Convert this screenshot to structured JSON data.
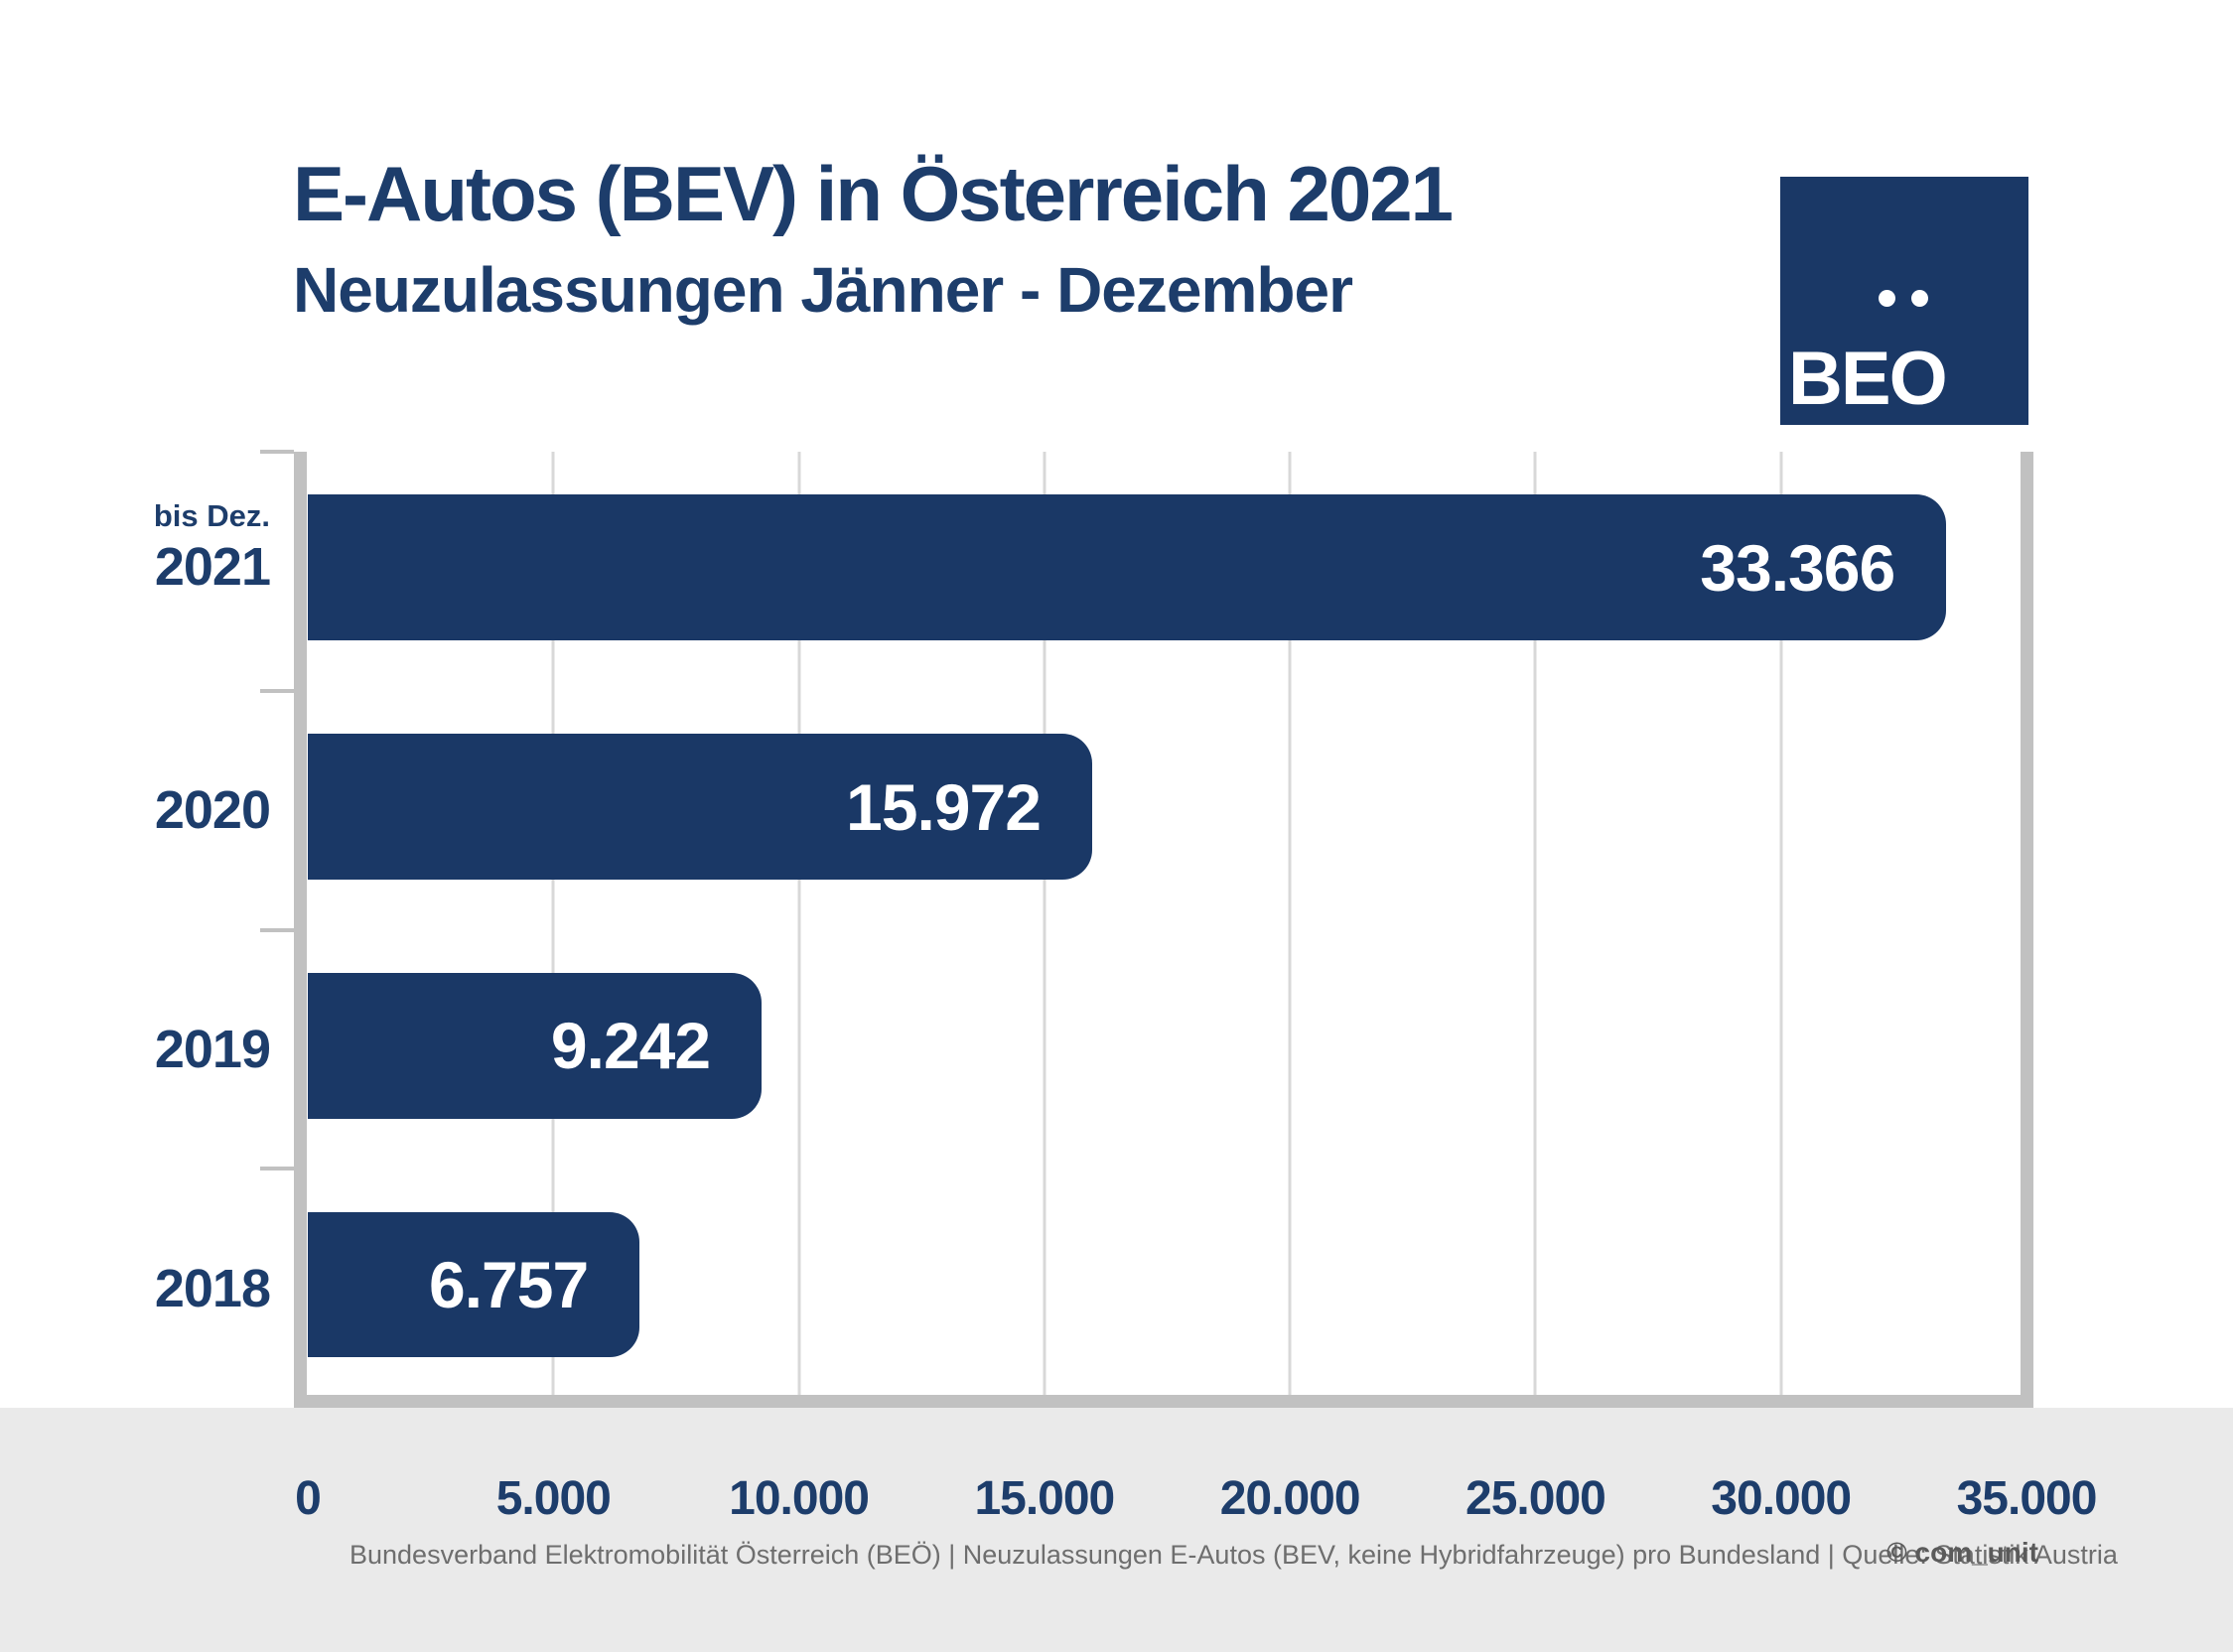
{
  "header": {
    "title": "E-Autos (BEV) in Österreich 2021",
    "subtitle": "Neuzulassungen Jänner - Dezember"
  },
  "logo": {
    "text": "BEO"
  },
  "chart_data": {
    "type": "bar",
    "orientation": "horizontal",
    "title": "E-Autos (BEV) in Österreich 2021",
    "subtitle": "Neuzulassungen Jänner - Dezember",
    "categories": [
      "bis Dez. 2021",
      "2020",
      "2019",
      "2018"
    ],
    "values": [
      33366,
      15972,
      9242,
      6757
    ],
    "value_labels": [
      "33.366",
      "15.972",
      "9.242",
      "6.757"
    ],
    "xlim": [
      0,
      35000
    ],
    "x_ticks": [
      "0",
      "5.000",
      "10.000",
      "15.000",
      "20.000",
      "25.000",
      "30.000",
      "35.000"
    ],
    "grid": true,
    "legend": false,
    "bar_color": "#1a3866"
  },
  "rows": [
    {
      "prefix": "bis Dez.",
      "year": "2021",
      "value_label": "33.366"
    },
    {
      "prefix": "",
      "year": "2020",
      "value_label": "15.972"
    },
    {
      "prefix": "",
      "year": "2019",
      "value_label": "9.242"
    },
    {
      "prefix": "",
      "year": "2018",
      "value_label": "6.757"
    }
  ],
  "footer": {
    "source": "Bundesverband Elektromobilität Österreich (BEÖ) | Neuzulassungen E-Autos (BEV, keine Hybridfahrzeuge) pro Bundesland | Quelle: Statistik Austria",
    "copyright": "© com_unit"
  },
  "colors": {
    "bar": "#1a3866",
    "title": "#1d3d6b",
    "axis_gray": "#c1c1c1",
    "gridline": "#d8d8d8",
    "band": "#eaeaea",
    "value_text": "#ffffff"
  }
}
